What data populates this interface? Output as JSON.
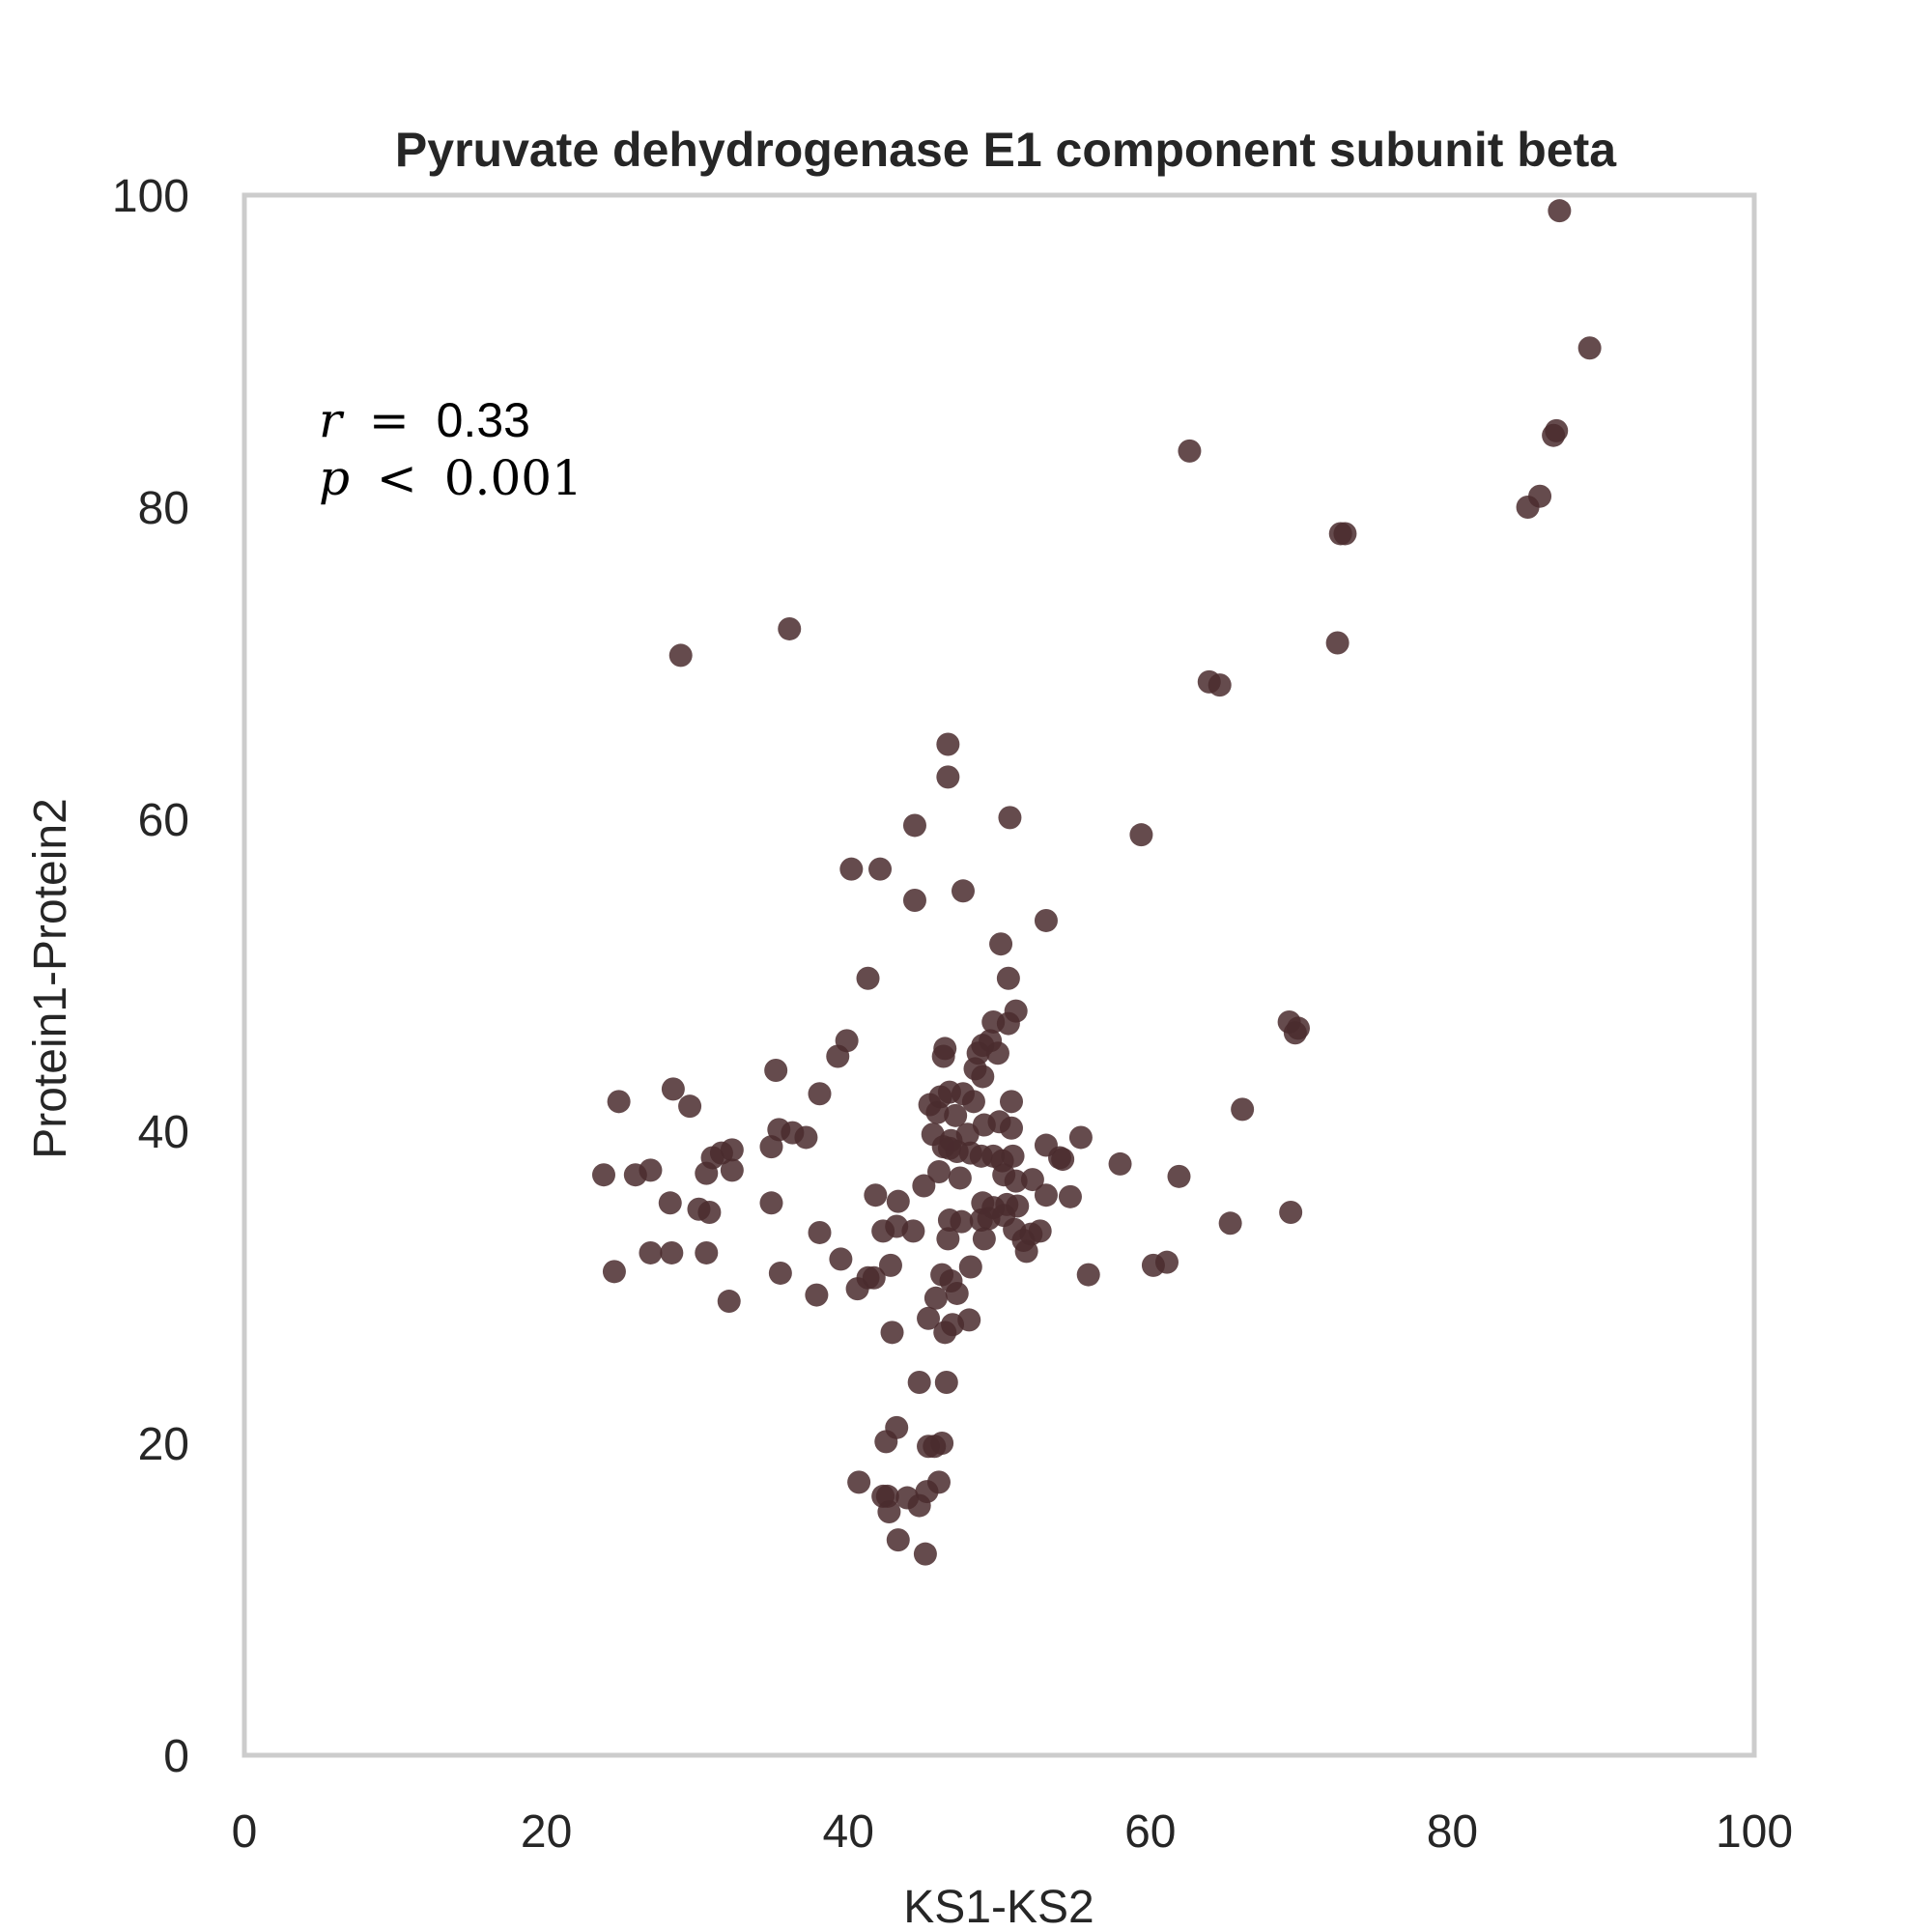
{
  "chart_data": {
    "type": "scatter",
    "title": "Pyruvate dehydrogenase E1 component subunit beta",
    "xlabel": "KS1-KS2",
    "ylabel": "Protein1-Protein2",
    "xlim": [
      0,
      100
    ],
    "ylim": [
      0,
      100
    ],
    "xticks": [
      "0",
      "20",
      "40",
      "60",
      "80",
      "100"
    ],
    "yticks": [
      "0",
      "20",
      "40",
      "60",
      "80",
      "100"
    ],
    "grid": false,
    "annotation": {
      "r_var": "r",
      "r_op": "=",
      "r_value": "0.33",
      "p_var": "p",
      "p_op": "<",
      "p_value": "0.001"
    },
    "colors": {
      "point": "#4a2c2e",
      "frame": "#cccccc",
      "text": "#262626"
    },
    "points": [
      [
        87.1,
        99.0
      ],
      [
        89.1,
        90.2
      ],
      [
        86.9,
        84.9
      ],
      [
        86.7,
        84.6
      ],
      [
        85.8,
        80.7
      ],
      [
        85.0,
        80.0
      ],
      [
        72.6,
        78.3
      ],
      [
        72.9,
        78.3
      ],
      [
        62.6,
        83.6
      ],
      [
        72.4,
        71.3
      ],
      [
        63.9,
        68.8
      ],
      [
        64.6,
        68.6
      ],
      [
        59.4,
        59.0
      ],
      [
        36.1,
        72.2
      ],
      [
        28.9,
        70.5
      ],
      [
        46.6,
        64.8
      ],
      [
        46.6,
        62.7
      ],
      [
        44.4,
        59.6
      ],
      [
        50.7,
        60.1
      ],
      [
        40.2,
        56.8
      ],
      [
        42.1,
        56.8
      ],
      [
        44.4,
        54.8
      ],
      [
        47.6,
        55.4
      ],
      [
        53.1,
        53.5
      ],
      [
        50.1,
        52.0
      ],
      [
        41.3,
        49.8
      ],
      [
        50.6,
        49.8
      ],
      [
        51.1,
        47.7
      ],
      [
        49.6,
        47.0
      ],
      [
        50.6,
        46.9
      ],
      [
        39.9,
        45.8
      ],
      [
        39.3,
        44.8
      ],
      [
        46.4,
        45.3
      ],
      [
        46.3,
        44.8
      ],
      [
        49.4,
        45.8
      ],
      [
        48.9,
        45.5
      ],
      [
        48.6,
        45.0
      ],
      [
        49.9,
        45.0
      ],
      [
        48.4,
        44.0
      ],
      [
        48.9,
        43.5
      ],
      [
        35.2,
        43.9
      ],
      [
        28.4,
        42.7
      ],
      [
        38.1,
        42.4
      ],
      [
        24.8,
        41.9
      ],
      [
        29.5,
        41.6
      ],
      [
        45.4,
        41.7
      ],
      [
        46.1,
        42.2
      ],
      [
        46.7,
        42.5
      ],
      [
        47.6,
        42.4
      ],
      [
        48.3,
        41.9
      ],
      [
        50.8,
        41.9
      ],
      [
        66.1,
        41.4
      ],
      [
        45.9,
        41.2
      ],
      [
        47.1,
        41.0
      ],
      [
        49.0,
        40.4
      ],
      [
        35.4,
        40.1
      ],
      [
        36.3,
        39.9
      ],
      [
        37.2,
        39.6
      ],
      [
        45.6,
        39.8
      ],
      [
        46.8,
        39.4
      ],
      [
        47.9,
        39.8
      ],
      [
        50.0,
        40.6
      ],
      [
        50.8,
        40.2
      ],
      [
        55.4,
        39.6
      ],
      [
        53.1,
        39.1
      ],
      [
        34.9,
        39.0
      ],
      [
        32.3,
        38.8
      ],
      [
        31.6,
        38.6
      ],
      [
        31.0,
        38.3
      ],
      [
        46.3,
        39.0
      ],
      [
        46.7,
        38.9
      ],
      [
        47.2,
        38.7
      ],
      [
        48.1,
        38.6
      ],
      [
        48.8,
        38.4
      ],
      [
        49.6,
        38.4
      ],
      [
        50.2,
        38.1
      ],
      [
        50.9,
        38.4
      ],
      [
        54.2,
        38.2
      ],
      [
        54.0,
        38.3
      ],
      [
        58.0,
        37.9
      ],
      [
        32.3,
        37.5
      ],
      [
        23.8,
        37.2
      ],
      [
        25.9,
        37.2
      ],
      [
        26.9,
        37.5
      ],
      [
        30.6,
        37.3
      ],
      [
        46.0,
        37.4
      ],
      [
        47.4,
        37.0
      ],
      [
        50.3,
        37.2
      ],
      [
        51.1,
        36.8
      ],
      [
        52.2,
        36.9
      ],
      [
        61.9,
        37.1
      ],
      [
        45.0,
        36.5
      ],
      [
        41.8,
        35.9
      ],
      [
        43.3,
        35.5
      ],
      [
        28.2,
        35.4
      ],
      [
        34.9,
        35.4
      ],
      [
        30.1,
        35.0
      ],
      [
        30.8,
        34.8
      ],
      [
        48.9,
        35.4
      ],
      [
        49.6,
        35.1
      ],
      [
        50.5,
        35.3
      ],
      [
        51.2,
        35.2
      ],
      [
        53.1,
        35.9
      ],
      [
        54.7,
        35.8
      ],
      [
        46.7,
        34.3
      ],
      [
        47.5,
        34.2
      ],
      [
        48.8,
        34.3
      ],
      [
        49.3,
        34.4
      ],
      [
        50.3,
        34.6
      ],
      [
        69.3,
        34.8
      ],
      [
        65.3,
        34.1
      ],
      [
        42.3,
        33.6
      ],
      [
        43.2,
        33.9
      ],
      [
        44.3,
        33.6
      ],
      [
        46.6,
        33.1
      ],
      [
        49.0,
        33.1
      ],
      [
        51.0,
        33.7
      ],
      [
        52.1,
        33.4
      ],
      [
        52.7,
        33.6
      ],
      [
        38.1,
        33.5
      ],
      [
        51.6,
        33.0
      ],
      [
        51.8,
        32.3
      ],
      [
        26.9,
        32.2
      ],
      [
        28.3,
        32.2
      ],
      [
        30.6,
        32.2
      ],
      [
        39.5,
        31.8
      ],
      [
        60.2,
        31.4
      ],
      [
        61.1,
        31.6
      ],
      [
        24.5,
        31.0
      ],
      [
        35.5,
        30.9
      ],
      [
        42.8,
        31.4
      ],
      [
        48.1,
        31.3
      ],
      [
        41.3,
        30.6
      ],
      [
        41.7,
        30.6
      ],
      [
        40.6,
        29.9
      ],
      [
        46.2,
        30.8
      ],
      [
        46.8,
        30.4
      ],
      [
        55.9,
        30.8
      ],
      [
        37.9,
        29.5
      ],
      [
        32.1,
        29.1
      ],
      [
        45.8,
        29.3
      ],
      [
        47.2,
        29.6
      ],
      [
        45.3,
        28.0
      ],
      [
        46.9,
        27.6
      ],
      [
        48.0,
        27.9
      ],
      [
        42.9,
        27.1
      ],
      [
        46.4,
        27.1
      ],
      [
        44.7,
        23.9
      ],
      [
        46.5,
        23.9
      ],
      [
        43.2,
        21.0
      ],
      [
        42.5,
        20.1
      ],
      [
        45.3,
        19.8
      ],
      [
        45.7,
        19.8
      ],
      [
        46.2,
        20.0
      ],
      [
        40.7,
        17.5
      ],
      [
        46.0,
        17.5
      ],
      [
        42.3,
        16.6
      ],
      [
        42.6,
        16.6
      ],
      [
        43.9,
        16.5
      ],
      [
        45.2,
        16.9
      ],
      [
        44.7,
        16.0
      ],
      [
        42.7,
        15.6
      ],
      [
        43.3,
        13.8
      ],
      [
        45.1,
        12.9
      ],
      [
        69.2,
        47.0
      ],
      [
        69.8,
        46.6
      ],
      [
        69.6,
        46.3
      ]
    ]
  }
}
